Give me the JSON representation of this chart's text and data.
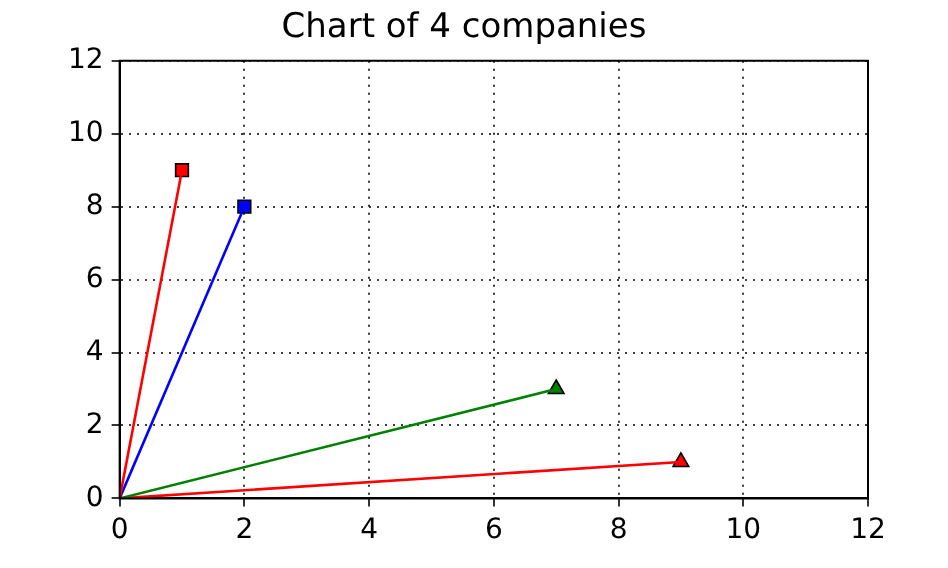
{
  "chart_data": {
    "type": "line",
    "title": "Chart of 4 companies",
    "xlim": [
      0,
      12
    ],
    "xticks": [
      0,
      2,
      4,
      6,
      8,
      10,
      12
    ],
    "ylim": [
      0,
      12
    ],
    "yticks": [
      0,
      2,
      4,
      6,
      8,
      10,
      12
    ],
    "grid": true,
    "legend": false,
    "line_style": "solid",
    "series": [
      {
        "marker": "none",
        "color": "#ff0000",
        "x": [
          0,
          1
        ],
        "values": [
          0,
          9
        ]
      },
      {
        "marker": "none",
        "color": "#0000ff",
        "x": [
          0,
          2
        ],
        "values": [
          0,
          8
        ]
      },
      {
        "marker": "none",
        "color": "#008000",
        "x": [
          0,
          7
        ],
        "values": [
          0,
          3
        ]
      },
      {
        "marker": "none",
        "color": "#ff0000",
        "x": [
          0,
          9
        ],
        "values": [
          0,
          1
        ]
      },
      {
        "type": "scatter",
        "marker": "square",
        "color": "#ff0000",
        "x": [
          1
        ],
        "values": [
          9
        ]
      },
      {
        "type": "scatter",
        "marker": "square",
        "color": "#0000ff",
        "x": [
          2
        ],
        "values": [
          8
        ]
      },
      {
        "type": "scatter",
        "marker": "triangle",
        "color": "#008000",
        "x": [
          7
        ],
        "values": [
          3
        ]
      },
      {
        "type": "scatter",
        "marker": "triangle",
        "color": "#ff0000",
        "x": [
          9
        ],
        "values": [
          1
        ]
      }
    ]
  }
}
